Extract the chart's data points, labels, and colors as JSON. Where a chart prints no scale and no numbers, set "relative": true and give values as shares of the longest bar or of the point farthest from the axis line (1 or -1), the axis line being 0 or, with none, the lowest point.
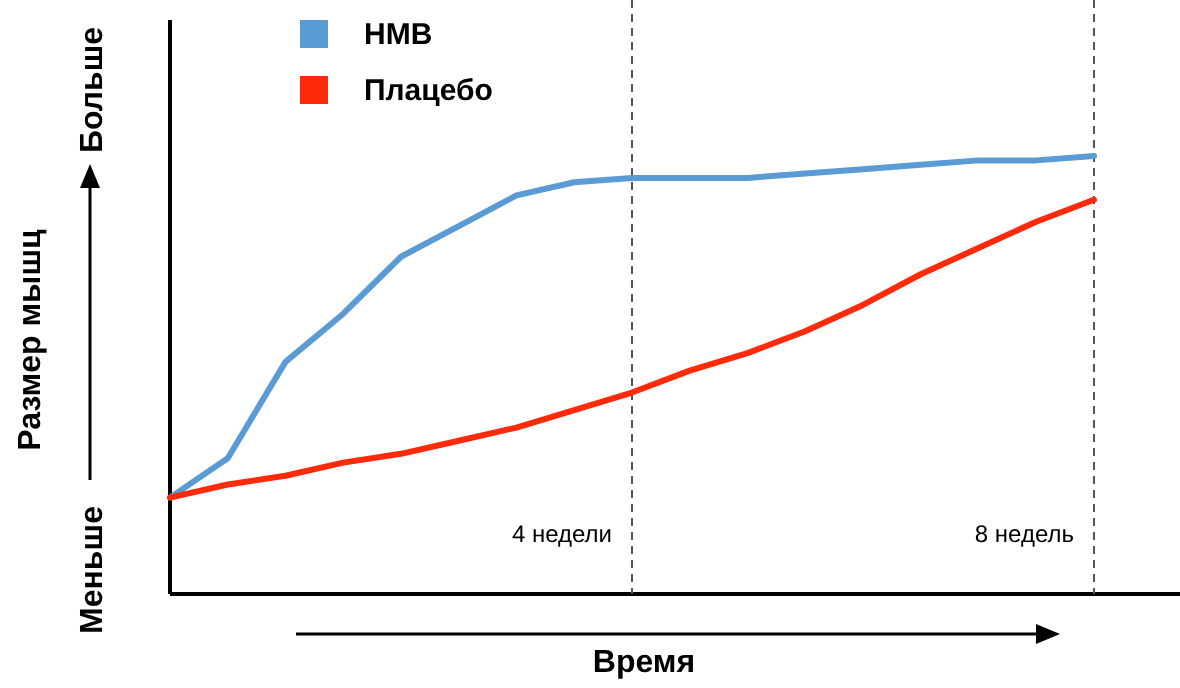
{
  "chart_data": {
    "type": "line",
    "relative": true,
    "xlabel": "Время",
    "ylabel": "Размер мышц",
    "annotations": [
      "Меньше",
      "Больше",
      "4 недели",
      "8 недель"
    ],
    "categories": [
      null,
      null,
      null,
      null,
      null,
      null,
      null,
      null,
      null,
      null,
      null,
      null,
      null,
      null,
      null,
      null,
      null
    ],
    "legend": "top left",
    "marker": "none",
    "line_style": "solid",
    "series": [
      {
        "name": "HMB",
        "color": "#5b9bd5",
        "values": [
          0.22,
          0.31,
          0.53,
          0.64,
          0.77,
          0.84,
          0.91,
          0.94,
          0.95,
          0.95,
          0.95,
          0.96,
          0.97,
          0.98,
          0.99,
          0.99,
          1
        ]
      },
      {
        "name": "Плацебо",
        "color": "#ff2a0a",
        "values": [
          0.22,
          0.25,
          0.27,
          0.3,
          0.32,
          0.35,
          0.38,
          0.42,
          0.46,
          0.51,
          0.55,
          0.6,
          0.66,
          0.73,
          0.79,
          0.85,
          0.9
        ]
      }
    ]
  }
}
